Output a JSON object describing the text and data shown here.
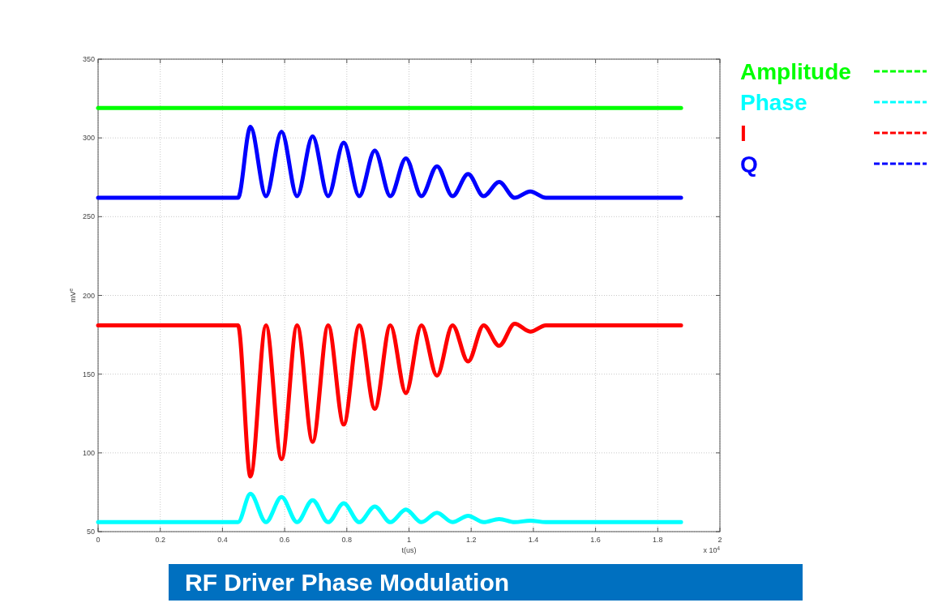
{
  "chart_data": {
    "type": "line",
    "title": "RF Driver Phase Modulation",
    "xlabel": "t(us)",
    "ylabel": "mV$^{e}$",
    "annotations": [
      "x 10$^{4}$"
    ],
    "xlim": [
      0,
      2
    ],
    "xticks": [
      0,
      0.2,
      0.4,
      0.6,
      0.8,
      1,
      1.2,
      1.4,
      1.6,
      1.8,
      2
    ],
    "ylim": [
      50,
      350
    ],
    "yticks": [
      50,
      100,
      150,
      200,
      250,
      300,
      350
    ],
    "grid": true,
    "legend": "right",
    "line_style": "solid",
    "marker": "none",
    "series": [
      {
        "name": "Amplitude",
        "color": "#00ff00",
        "x": [
          0,
          1.875
        ],
        "values": [
          319,
          319
        ]
      },
      {
        "name": "Phase",
        "color": "#00ffff",
        "x": [
          0,
          0.45,
          0.49,
          0.54,
          0.59,
          0.64,
          0.69,
          0.74,
          0.79,
          0.84,
          0.89,
          0.94,
          0.99,
          1.04,
          1.09,
          1.14,
          1.19,
          1.24,
          1.29,
          1.34,
          1.39,
          1.44,
          1.875
        ],
        "values": [
          56,
          56,
          74,
          56,
          72,
          56,
          70,
          56,
          68,
          56,
          66,
          56,
          64,
          56,
          62,
          56,
          60,
          56,
          58,
          56,
          57,
          56,
          56
        ]
      },
      {
        "name": "I",
        "color": "#ff0000",
        "x": [
          0,
          0.45,
          0.49,
          0.54,
          0.59,
          0.64,
          0.69,
          0.74,
          0.79,
          0.84,
          0.89,
          0.94,
          0.99,
          1.04,
          1.09,
          1.14,
          1.19,
          1.24,
          1.29,
          1.34,
          1.39,
          1.44,
          1.875
        ],
        "values": [
          181,
          181,
          85,
          181,
          96,
          181,
          107,
          181,
          118,
          181,
          128,
          181,
          138,
          181,
          149,
          181,
          158,
          181,
          168,
          182,
          177,
          181,
          181
        ]
      },
      {
        "name": "Q",
        "color": "#0000ff",
        "x": [
          0,
          0.45,
          0.49,
          0.54,
          0.59,
          0.64,
          0.69,
          0.74,
          0.79,
          0.84,
          0.89,
          0.94,
          0.99,
          1.04,
          1.09,
          1.14,
          1.19,
          1.24,
          1.29,
          1.34,
          1.39,
          1.44,
          1.875
        ],
        "values": [
          262,
          262,
          307,
          263,
          304,
          263,
          301,
          263,
          297,
          263,
          292,
          263,
          287,
          263,
          282,
          263,
          277,
          263,
          272,
          262,
          266,
          262,
          262
        ]
      }
    ]
  }
}
